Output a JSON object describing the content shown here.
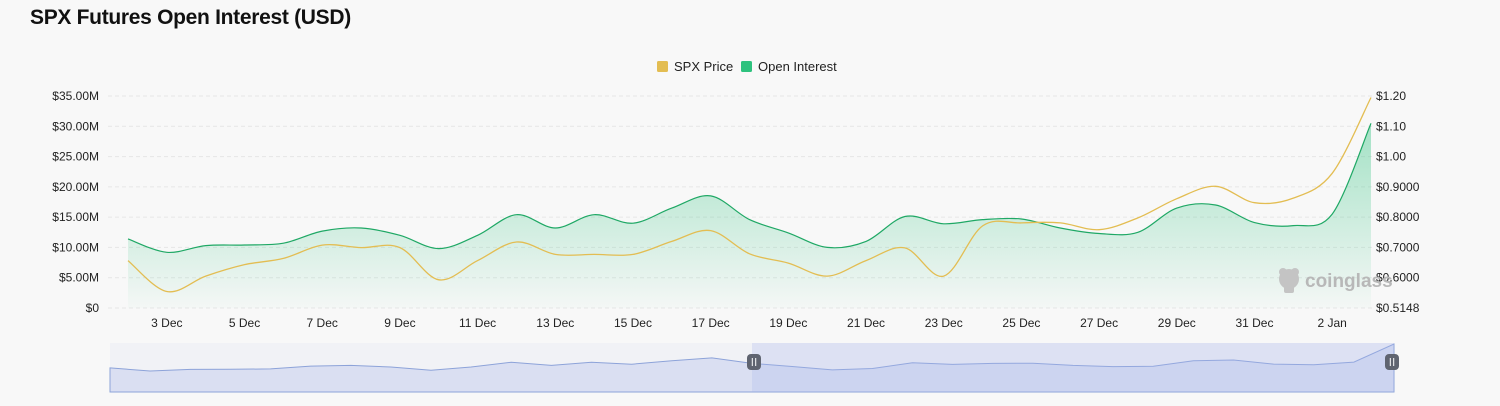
{
  "page_title": "SPX Futures Open Interest (USD)",
  "watermark": "coinglass",
  "colors": {
    "price": "#e3bd52",
    "open_interest": "#2ec27e",
    "open_interest_line": "#1fa865",
    "grid": "#e6e6e6",
    "zoom_fill": "#c6d0ee",
    "zoom_line": "#8da3d9"
  },
  "chart_data": {
    "type": "area",
    "title": "SPX Futures Open Interest (USD)",
    "legend": [
      "SPX Price",
      "Open Interest"
    ],
    "legend_position": "top-center",
    "x": [
      "2 Dec",
      "3 Dec",
      "4 Dec",
      "5 Dec",
      "6 Dec",
      "7 Dec",
      "8 Dec",
      "9 Dec",
      "10 Dec",
      "11 Dec",
      "12 Dec",
      "13 Dec",
      "14 Dec",
      "15 Dec",
      "16 Dec",
      "17 Dec",
      "18 Dec",
      "19 Dec",
      "20 Dec",
      "21 Dec",
      "22 Dec",
      "23 Dec",
      "24 Dec",
      "25 Dec",
      "26 Dec",
      "27 Dec",
      "28 Dec",
      "29 Dec",
      "30 Dec",
      "31 Dec",
      "1 Jan",
      "2 Jan",
      "3 Jan"
    ],
    "x_tick_labels": [
      "3 Dec",
      "5 Dec",
      "7 Dec",
      "9 Dec",
      "11 Dec",
      "13 Dec",
      "15 Dec",
      "17 Dec",
      "19 Dec",
      "21 Dec",
      "23 Dec",
      "25 Dec",
      "27 Dec",
      "29 Dec",
      "31 Dec",
      "2 Jan"
    ],
    "series": [
      {
        "name": "Open Interest",
        "axis": "left",
        "values": [
          11.4,
          9.2,
          10.3,
          10.4,
          10.7,
          12.7,
          13.2,
          12.0,
          9.8,
          12.0,
          15.4,
          13.2,
          15.4,
          14.0,
          16.5,
          18.5,
          14.6,
          12.4,
          10.0,
          11.0,
          15.1,
          13.9,
          14.6,
          14.7,
          13.2,
          12.3,
          12.5,
          16.5,
          17.0,
          14.1,
          13.6,
          15.5,
          30.5
        ]
      },
      {
        "name": "SPX Price",
        "axis": "right",
        "values": [
          0.668,
          0.568,
          0.618,
          0.655,
          0.675,
          0.718,
          0.71,
          0.71,
          0.606,
          0.668,
          0.728,
          0.688,
          0.688,
          0.688,
          0.73,
          0.765,
          0.69,
          0.66,
          0.618,
          0.668,
          0.709,
          0.618,
          0.78,
          0.79,
          0.79,
          0.768,
          0.806,
          0.868,
          0.908,
          0.855,
          0.87,
          0.95,
          1.195
        ]
      }
    ],
    "y_left": {
      "ticks": [
        "$35.00M",
        "$30.00M",
        "$25.00M",
        "$20.00M",
        "$15.00M",
        "$10.00M",
        "$5.00M",
        "$0"
      ],
      "range": [
        0,
        35
      ]
    },
    "y_right": {
      "ticks": [
        "$1.20",
        "$1.10",
        "$1.00",
        "$0.9000",
        "$0.8000",
        "$0.7000",
        "$0.6000",
        "$0.5148"
      ],
      "range": [
        0.5148,
        1.2
      ]
    },
    "grid": true,
    "zoom_selection": [
      0.5,
      1.0
    ]
  }
}
